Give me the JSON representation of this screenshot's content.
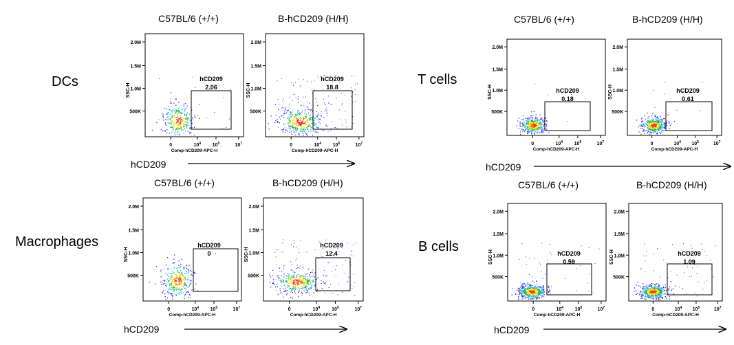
{
  "colors": {
    "gate": "#000000",
    "axis": "#000000",
    "dot_low": "#2b2bd9",
    "dot_mid": "#22b14c",
    "dot_hot": "#ff2a00"
  },
  "chart_data": [
    {
      "type": "scatter",
      "group": "DCs",
      "panels": [
        {
          "title": "C57BL/6 (+/+)",
          "gate_label": "hCD209",
          "gate_value": "2.06"
        },
        {
          "title": "B-hCD209 (H/H)",
          "gate_label": "hCD209",
          "gate_value": "18.8"
        }
      ],
      "xlabel": "Comp-hCD209-APC-H",
      "ylabel": "SSC-H",
      "yticks": [
        "2.0M",
        "1.5M",
        "1.0M",
        "500K"
      ],
      "xticks": [
        "0",
        "10^4",
        "10^5",
        "10^7"
      ],
      "axis_caption": "hCD209"
    },
    {
      "type": "scatter",
      "group": "Macrophages",
      "panels": [
        {
          "title": "C57BL/6 (+/+)",
          "gate_label": "hCD209",
          "gate_value": "0"
        },
        {
          "title": "B-hCD209 (H/H)",
          "gate_label": "hCD209",
          "gate_value": "12.4"
        }
      ],
      "xlabel": "Comp-hCD209-APC-H",
      "ylabel": "SSC-H",
      "yticks": [
        "2.0M",
        "1.5M",
        "1.0M",
        "500K"
      ],
      "xticks": [
        "0",
        "10^4",
        "10^5",
        "10^7"
      ],
      "axis_caption": "hCD209"
    },
    {
      "type": "scatter",
      "group": "T cells",
      "panels": [
        {
          "title": "C57BL/6 (+/+)",
          "gate_label": "hCD209",
          "gate_value": "0.18"
        },
        {
          "title": "B-hCD209 (H/H)",
          "gate_label": "hCD209",
          "gate_value": "0.61"
        }
      ],
      "xlabel": "Comp-hCD209-APC-H",
      "ylabel": "SSC-H",
      "yticks": [
        "2.0M",
        "1.5M",
        "1.0M",
        "500K"
      ],
      "xticks": [
        "0",
        "10^4",
        "10^5",
        "10^7"
      ],
      "axis_caption": "hCD209"
    },
    {
      "type": "scatter",
      "group": "B cells",
      "panels": [
        {
          "title": "C57BL/6 (+/+)",
          "gate_label": "hCD209",
          "gate_value": "0.59"
        },
        {
          "title": "B-hCD209 (H/H)",
          "gate_label": "hCD209",
          "gate_value": "1.09"
        }
      ],
      "xlabel": "Comp-hCD209-APC-H",
      "ylabel": "SSC-H",
      "yticks": [
        "2.0M",
        "1.5M",
        "1.0M",
        "500K"
      ],
      "xticks": [
        "0",
        "10^4",
        "10^5",
        "10^7"
      ],
      "axis_caption": "hCD209"
    }
  ]
}
